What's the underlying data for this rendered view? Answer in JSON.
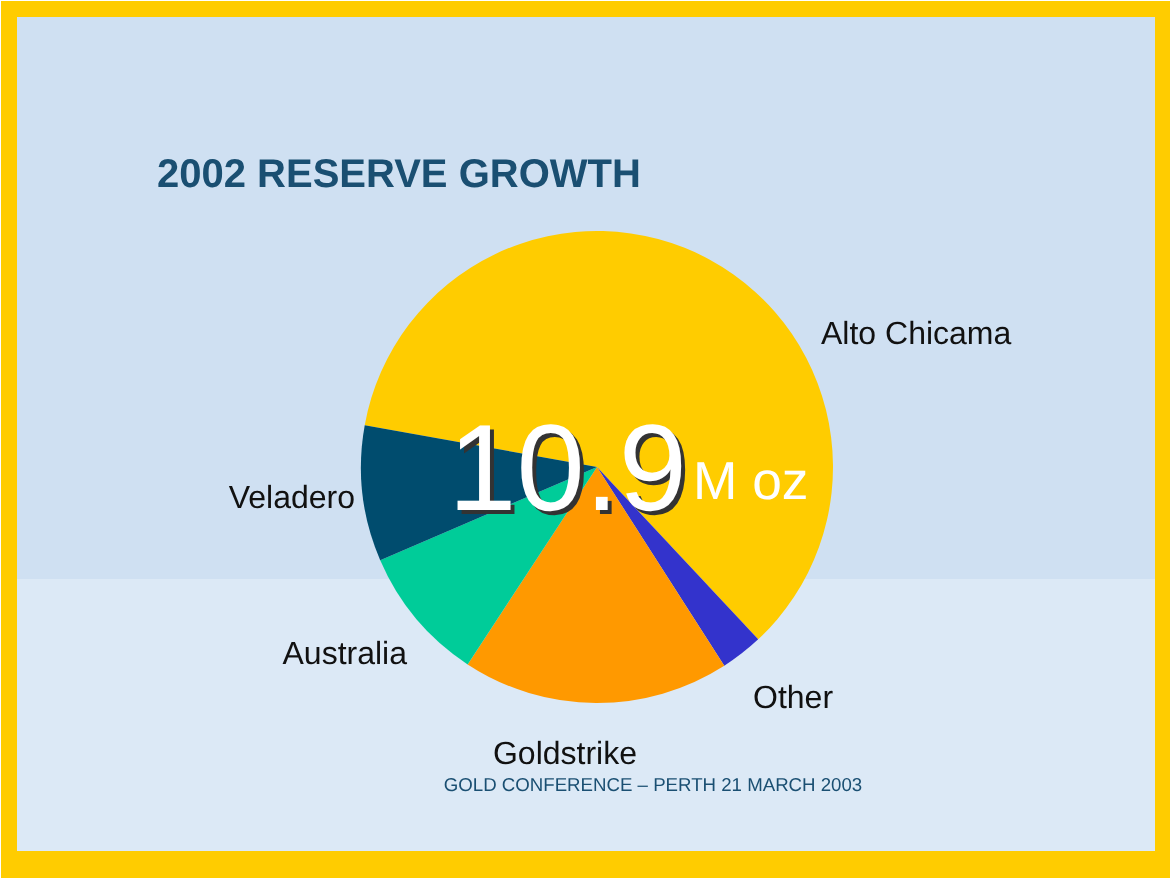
{
  "chart_data": {
    "type": "pie",
    "title": "2002 RESERVE GROWTH",
    "categories": [
      "Alto Chicama",
      "Other",
      "Goldstrike",
      "Australia",
      "Veladero"
    ],
    "values": [
      60.2,
      2.9,
      18.3,
      9.3,
      9.3
    ],
    "colors": [
      "#ffcc00",
      "#3333cc",
      "#ff9900",
      "#00cc99",
      "#004c6e"
    ],
    "annotations": [
      "10.9",
      "M oz",
      "GOLD CONFERENCE – PERTH 21 MARCH 2003"
    ]
  }
}
